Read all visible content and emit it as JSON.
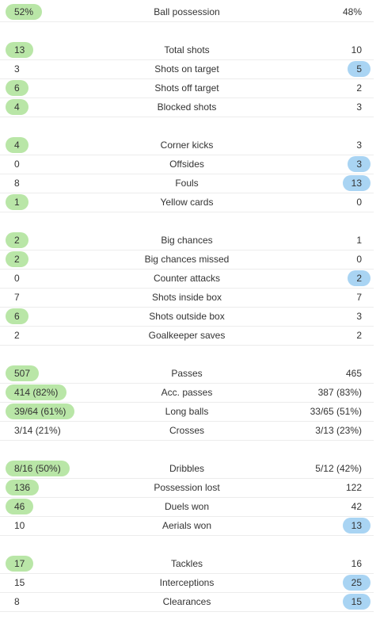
{
  "colors": {
    "home_highlight": "#b9e6a7",
    "away_highlight": "#a9d4f3",
    "divider": "#ececec",
    "text": "#333333"
  },
  "groups": [
    {
      "rows": [
        {
          "label": "Ball possession",
          "home": "52%",
          "away": "48%",
          "highlight": "home"
        }
      ]
    },
    {
      "rows": [
        {
          "label": "Total shots",
          "home": "13",
          "away": "10",
          "highlight": "home"
        },
        {
          "label": "Shots on target",
          "home": "3",
          "away": "5",
          "highlight": "away"
        },
        {
          "label": "Shots off target",
          "home": "6",
          "away": "2",
          "highlight": "home"
        },
        {
          "label": "Blocked shots",
          "home": "4",
          "away": "3",
          "highlight": "home"
        }
      ]
    },
    {
      "rows": [
        {
          "label": "Corner kicks",
          "home": "4",
          "away": "3",
          "highlight": "home"
        },
        {
          "label": "Offsides",
          "home": "0",
          "away": "3",
          "highlight": "away"
        },
        {
          "label": "Fouls",
          "home": "8",
          "away": "13",
          "highlight": "away"
        },
        {
          "label": "Yellow cards",
          "home": "1",
          "away": "0",
          "highlight": "home"
        }
      ]
    },
    {
      "rows": [
        {
          "label": "Big chances",
          "home": "2",
          "away": "1",
          "highlight": "home"
        },
        {
          "label": "Big chances missed",
          "home": "2",
          "away": "0",
          "highlight": "home"
        },
        {
          "label": "Counter attacks",
          "home": "0",
          "away": "2",
          "highlight": "away"
        },
        {
          "label": "Shots inside box",
          "home": "7",
          "away": "7",
          "highlight": "none"
        },
        {
          "label": "Shots outside box",
          "home": "6",
          "away": "3",
          "highlight": "home"
        },
        {
          "label": "Goalkeeper saves",
          "home": "2",
          "away": "2",
          "highlight": "none"
        }
      ]
    },
    {
      "rows": [
        {
          "label": "Passes",
          "home": "507",
          "away": "465",
          "highlight": "home"
        },
        {
          "label": "Acc. passes",
          "home": "414 (82%)",
          "away": "387 (83%)",
          "highlight": "home"
        },
        {
          "label": "Long balls",
          "home": "39/64 (61%)",
          "away": "33/65 (51%)",
          "highlight": "home"
        },
        {
          "label": "Crosses",
          "home": "3/14 (21%)",
          "away": "3/13 (23%)",
          "highlight": "none"
        }
      ]
    },
    {
      "rows": [
        {
          "label": "Dribbles",
          "home": "8/16 (50%)",
          "away": "5/12 (42%)",
          "highlight": "home"
        },
        {
          "label": "Possession lost",
          "home": "136",
          "away": "122",
          "highlight": "home"
        },
        {
          "label": "Duels won",
          "home": "46",
          "away": "42",
          "highlight": "home"
        },
        {
          "label": "Aerials won",
          "home": "10",
          "away": "13",
          "highlight": "away"
        }
      ]
    },
    {
      "rows": [
        {
          "label": "Tackles",
          "home": "17",
          "away": "16",
          "highlight": "home"
        },
        {
          "label": "Interceptions",
          "home": "15",
          "away": "25",
          "highlight": "away"
        },
        {
          "label": "Clearances",
          "home": "8",
          "away": "15",
          "highlight": "away"
        }
      ]
    }
  ]
}
